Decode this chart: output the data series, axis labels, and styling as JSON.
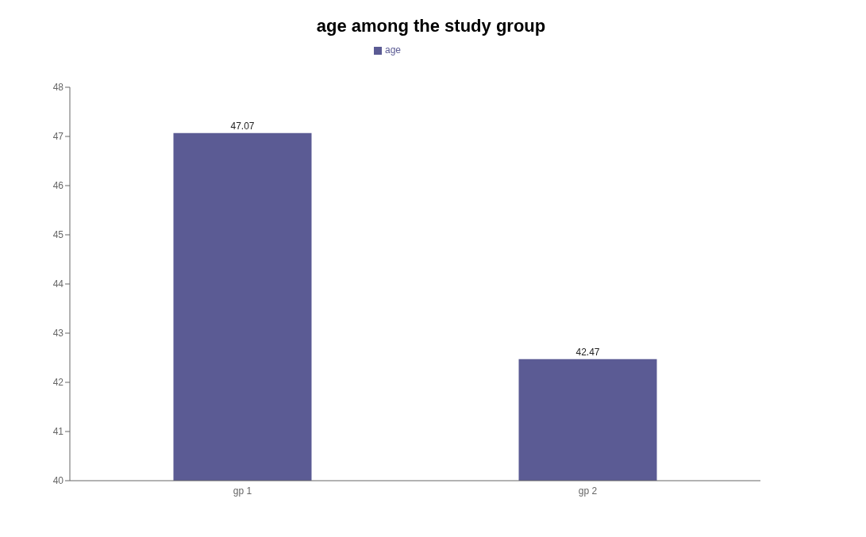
{
  "chart_data": {
    "type": "bar",
    "title": "age among the study group",
    "categories": [
      "gp 1",
      "gp 2"
    ],
    "series": [
      {
        "name": "age",
        "color": "#5b5b94",
        "values": [
          47.07,
          42.47
        ]
      }
    ],
    "ylim": [
      40,
      48
    ],
    "yticks": [
      40,
      41,
      42,
      43,
      44,
      45,
      46,
      47,
      48
    ],
    "data_labels": true,
    "legend": "top",
    "grid": false
  }
}
